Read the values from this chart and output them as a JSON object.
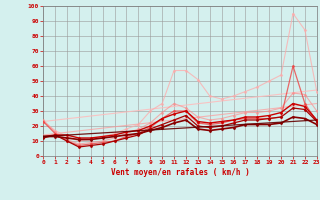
{
  "xlabel": "Vent moyen/en rafales ( km/h )",
  "xlim": [
    0,
    23
  ],
  "ylim": [
    0,
    100
  ],
  "xticks": [
    0,
    1,
    2,
    3,
    4,
    5,
    6,
    7,
    8,
    9,
    10,
    11,
    12,
    13,
    14,
    15,
    16,
    17,
    18,
    19,
    20,
    21,
    22,
    23
  ],
  "yticks": [
    0,
    10,
    20,
    30,
    40,
    50,
    60,
    70,
    80,
    90,
    100
  ],
  "background_color": "#d4f0ee",
  "grid_color": "#999999",
  "lines": [
    {
      "x": [
        0,
        23
      ],
      "y": [
        23,
        44
      ],
      "color": "#ffbbbb",
      "alpha": 0.85,
      "marker": null,
      "markersize": 0,
      "linewidth": 0.8
    },
    {
      "x": [
        0,
        1,
        2,
        3,
        4,
        5,
        6,
        7,
        8,
        9,
        10,
        11,
        12,
        13,
        14,
        15,
        16,
        17,
        18,
        19,
        20,
        21,
        22,
        23
      ],
      "y": [
        23,
        17,
        13,
        10,
        11,
        13,
        15,
        18,
        21,
        30,
        35,
        57,
        57,
        51,
        40,
        38,
        40,
        43,
        46,
        50,
        54,
        95,
        84,
        43
      ],
      "color": "#ffaaaa",
      "alpha": 0.75,
      "marker": "D",
      "markersize": 1.5,
      "linewidth": 0.8
    },
    {
      "x": [
        0,
        1,
        2,
        3,
        4,
        5,
        6,
        7,
        8,
        9,
        10,
        11,
        12,
        13,
        14,
        15,
        16,
        17,
        18,
        19,
        20,
        21,
        22,
        23
      ],
      "y": [
        24,
        16,
        11,
        8,
        9,
        10,
        12,
        15,
        18,
        22,
        29,
        35,
        32,
        26,
        24,
        25,
        27,
        29,
        29,
        30,
        32,
        42,
        41,
        30
      ],
      "color": "#ff8888",
      "alpha": 0.65,
      "marker": "D",
      "markersize": 1.5,
      "linewidth": 0.8
    },
    {
      "x": [
        0,
        23
      ],
      "y": [
        14,
        35
      ],
      "color": "#ff9999",
      "alpha": 0.7,
      "marker": null,
      "markersize": 0,
      "linewidth": 0.8
    },
    {
      "x": [
        0,
        1,
        2,
        3,
        4,
        5,
        6,
        7,
        8,
        9,
        10,
        11,
        12,
        13,
        14,
        15,
        16,
        17,
        18,
        19,
        20,
        21,
        22,
        23
      ],
      "y": [
        23,
        15,
        10,
        7,
        8,
        9,
        10,
        13,
        15,
        19,
        25,
        30,
        30,
        22,
        21,
        22,
        24,
        25,
        25,
        25,
        26,
        60,
        35,
        23
      ],
      "color": "#ee4444",
      "alpha": 0.8,
      "marker": "D",
      "markersize": 1.5,
      "linewidth": 0.9
    },
    {
      "x": [
        0,
        1,
        2,
        3,
        4,
        5,
        6,
        7,
        8,
        9,
        10,
        11,
        12,
        13,
        14,
        15,
        16,
        17,
        18,
        19,
        20,
        21,
        22,
        23
      ],
      "y": [
        13,
        14,
        14,
        12,
        12,
        13,
        14,
        16,
        17,
        20,
        25,
        28,
        30,
        23,
        22,
        23,
        24,
        26,
        26,
        27,
        29,
        35,
        33,
        24
      ],
      "color": "#cc0000",
      "alpha": 1.0,
      "marker": "D",
      "markersize": 1.5,
      "linewidth": 1.0
    },
    {
      "x": [
        0,
        1,
        2,
        3,
        4,
        5,
        6,
        7,
        8,
        9,
        10,
        11,
        12,
        13,
        14,
        15,
        16,
        17,
        18,
        19,
        20,
        21,
        22,
        23
      ],
      "y": [
        12,
        14,
        10,
        6,
        7,
        8,
        10,
        12,
        14,
        18,
        21,
        24,
        27,
        20,
        19,
        20,
        22,
        24,
        24,
        25,
        26,
        32,
        31,
        23
      ],
      "color": "#aa0000",
      "alpha": 1.0,
      "marker": "D",
      "markersize": 1.5,
      "linewidth": 0.9
    },
    {
      "x": [
        0,
        1,
        2,
        3,
        4,
        5,
        6,
        7,
        8,
        9,
        10,
        11,
        12,
        13,
        14,
        15,
        16,
        17,
        18,
        19,
        20,
        21,
        22,
        23
      ],
      "y": [
        13,
        13,
        12,
        11,
        11,
        12,
        13,
        14,
        15,
        17,
        19,
        22,
        24,
        18,
        17,
        18,
        19,
        21,
        21,
        21,
        22,
        26,
        25,
        21
      ],
      "color": "#880000",
      "alpha": 1.0,
      "marker": "D",
      "markersize": 1.5,
      "linewidth": 1.2
    },
    {
      "x": [
        0,
        23
      ],
      "y": [
        13,
        24
      ],
      "color": "#660000",
      "alpha": 0.9,
      "marker": null,
      "markersize": 0,
      "linewidth": 0.9
    }
  ]
}
